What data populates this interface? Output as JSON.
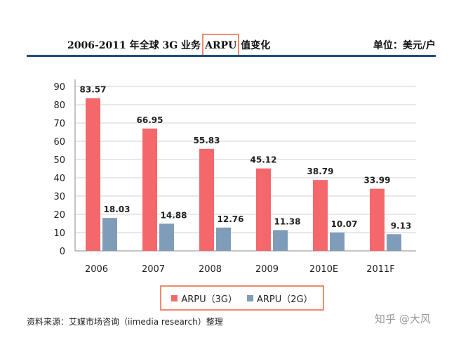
{
  "header": {
    "title_before": "2006-2011 年全球 3G 业务",
    "title_highlight": "ARPU",
    "title_after": "值变化",
    "unit": "单位：美元/户"
  },
  "chart_data": {
    "type": "bar",
    "categories": [
      "2006",
      "2007",
      "2008",
      "2009",
      "2010E",
      "2011F"
    ],
    "series": [
      {
        "name": "ARPU（3G）",
        "color": "#f4676b",
        "values": [
          83.57,
          66.95,
          55.83,
          45.12,
          38.79,
          33.99
        ]
      },
      {
        "name": "ARPU（2G）",
        "color": "#7f9db9",
        "values": [
          18.03,
          14.88,
          12.76,
          11.38,
          10.07,
          9.13
        ]
      }
    ],
    "data_labels": [
      [
        "83.57",
        "66.95",
        "55.83",
        "45.12",
        "38.79",
        "33.99"
      ],
      [
        "18.03",
        "14.88",
        "12.76",
        "11.38",
        "10.07",
        "9.13"
      ]
    ],
    "yticks": [
      "0",
      "10",
      "20",
      "30",
      "40",
      "50",
      "60",
      "70",
      "80",
      "90"
    ],
    "ylim": [
      0,
      90
    ],
    "grid": true,
    "legend_position": "bottom"
  },
  "legend": {
    "items": [
      {
        "label": "ARPU（3G）",
        "color": "#f4676b"
      },
      {
        "label": "ARPU（2G）",
        "color": "#7f9db9"
      }
    ]
  },
  "footer": {
    "source": "资料来源：艾媒市场咨询（iimedia research）整理",
    "watermark": "知乎 @大风"
  }
}
